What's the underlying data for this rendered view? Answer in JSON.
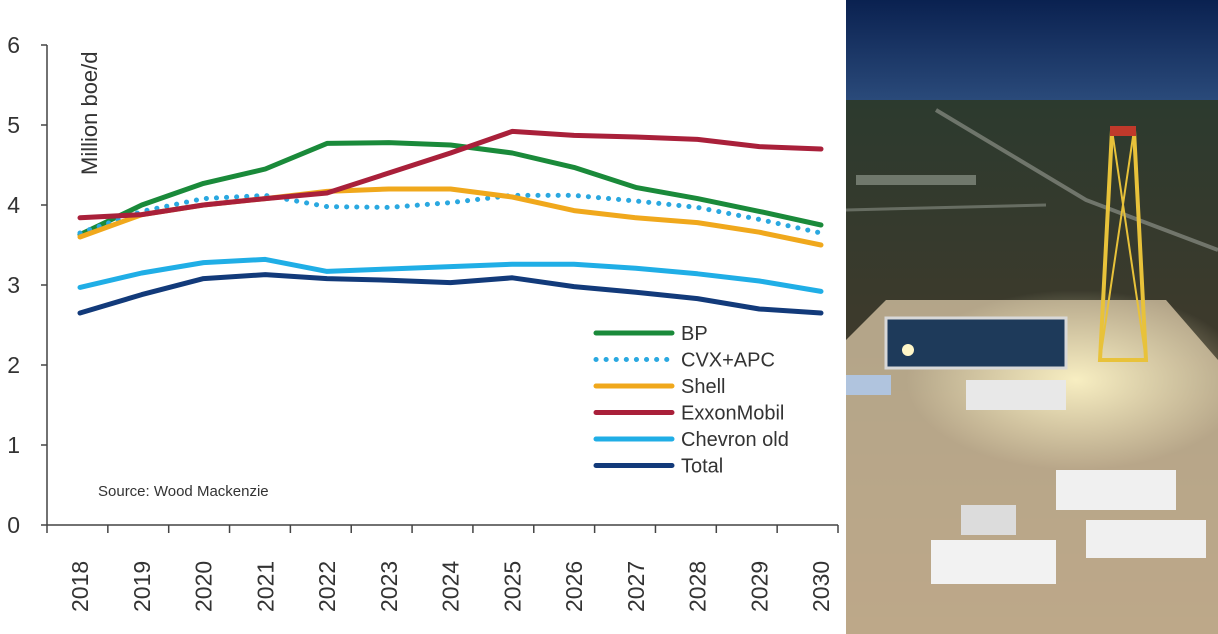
{
  "chart_data": {
    "type": "line",
    "title": "",
    "xlabel": "",
    "ylabel": "Million boe/d",
    "ylim": [
      0,
      6
    ],
    "yticks": [
      0,
      1,
      2,
      3,
      4,
      5,
      6
    ],
    "x": [
      "2018",
      "2019",
      "2020",
      "2021",
      "2022",
      "2023",
      "2024",
      "2025",
      "2026",
      "2027",
      "2028",
      "2029",
      "2030"
    ],
    "legend_position": "right",
    "grid": false,
    "source": "Source: Wood Mackenzie",
    "series": [
      {
        "name": "BP",
        "color": "#1a8a3a",
        "style": "solid",
        "values": [
          3.63,
          4.0,
          4.27,
          4.45,
          4.77,
          4.78,
          4.75,
          4.65,
          4.47,
          4.22,
          4.08,
          3.92,
          3.75
        ]
      },
      {
        "name": "CVX+APC",
        "color": "#2aa8e0",
        "style": "dotted",
        "values": [
          3.65,
          3.92,
          4.08,
          4.12,
          3.98,
          3.97,
          4.03,
          4.12,
          4.12,
          4.05,
          3.97,
          3.82,
          3.65
        ]
      },
      {
        "name": "Shell",
        "color": "#f0a81c",
        "style": "solid",
        "values": [
          3.6,
          3.88,
          4.0,
          4.08,
          4.17,
          4.2,
          4.2,
          4.1,
          3.93,
          3.84,
          3.78,
          3.66,
          3.5
        ]
      },
      {
        "name": "ExxonMobil",
        "color": "#a9203a",
        "style": "solid",
        "values": [
          3.84,
          3.88,
          4.0,
          4.08,
          4.15,
          4.4,
          4.65,
          4.92,
          4.87,
          4.85,
          4.82,
          4.73,
          4.7
        ]
      },
      {
        "name": "Chevron old",
        "color": "#20aee6",
        "style": "solid",
        "values": [
          2.97,
          3.15,
          3.28,
          3.32,
          3.17,
          3.2,
          3.23,
          3.26,
          3.26,
          3.21,
          3.14,
          3.05,
          2.92
        ]
      },
      {
        "name": "Total",
        "color": "#123a7a",
        "style": "solid",
        "values": [
          2.65,
          2.88,
          3.08,
          3.13,
          3.08,
          3.06,
          3.03,
          3.09,
          2.98,
          2.91,
          2.83,
          2.7,
          2.65
        ]
      }
    ]
  },
  "photo": {
    "icon": "oil-drilling-rig-night-photo",
    "sky_color": "#0d2a5c"
  }
}
